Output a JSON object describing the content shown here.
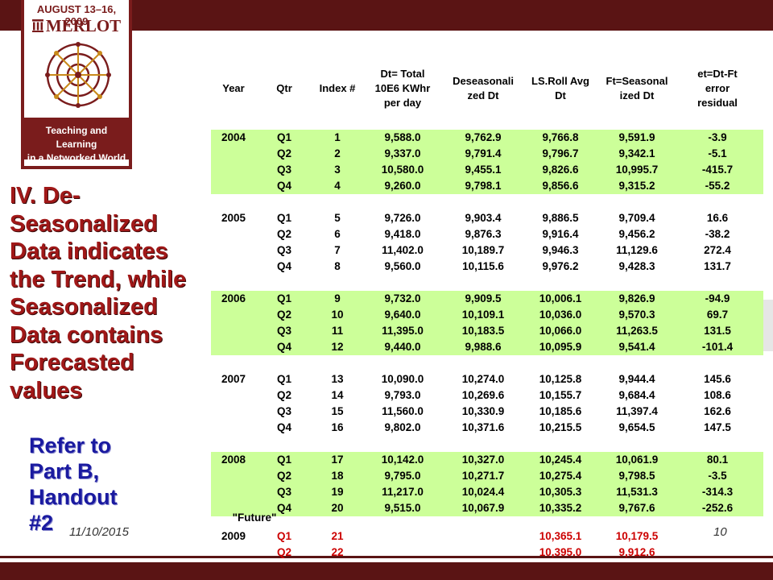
{
  "logo": {
    "dates": "AUGUST 13–16, 2009",
    "name": "MERLOT",
    "tagline_line1": "Teaching and Learning",
    "tagline_line2": "in a Networked World",
    "colors": {
      "brand": "#7a1c1c"
    }
  },
  "slide": {
    "title_lines": [
      "IV.  De-",
      "Seasonalized",
      "Data indicates",
      "the Trend, while",
      "Seasonalized",
      "Data  contains",
      "Forecasted",
      "values"
    ],
    "refer_lines": [
      "Refer to",
      "Part B,",
      "Handout",
      "#2"
    ],
    "footer_date": "11/10/2015",
    "page_number": "10"
  },
  "table": {
    "headers": {
      "year": "Year",
      "qtr": "Qtr",
      "index": "Index #",
      "dt": [
        "Dt= Total",
        "10E6 KWhr",
        "per day"
      ],
      "deseasonalized": [
        "Deseasonali",
        "zed Dt"
      ],
      "ls_roll": [
        "LS.Roll Avg",
        "Dt"
      ],
      "ft": [
        "Ft=Seasonal",
        "ized Dt"
      ],
      "et": [
        "et=Dt-Ft",
        "error",
        "residual"
      ]
    },
    "groups": [
      {
        "year": "2004",
        "highlight": true,
        "rows": [
          {
            "qtr": "Q1",
            "index": "1",
            "dt": "9,588.0",
            "des": "9,762.9",
            "ls": "9,766.8",
            "ft": "9,591.9",
            "et": "-3.9"
          },
          {
            "qtr": "Q2",
            "index": "2",
            "dt": "9,337.0",
            "des": "9,791.4",
            "ls": "9,796.7",
            "ft": "9,342.1",
            "et": "-5.1"
          },
          {
            "qtr": "Q3",
            "index": "3",
            "dt": "10,580.0",
            "des": "9,455.1",
            "ls": "9,826.6",
            "ft": "10,995.7",
            "et": "-415.7"
          },
          {
            "qtr": "Q4",
            "index": "4",
            "dt": "9,260.0",
            "des": "9,798.1",
            "ls": "9,856.6",
            "ft": "9,315.2",
            "et": "-55.2"
          }
        ]
      },
      {
        "year": "2005",
        "highlight": false,
        "rows": [
          {
            "qtr": "Q1",
            "index": "5",
            "dt": "9,726.0",
            "des": "9,903.4",
            "ls": "9,886.5",
            "ft": "9,709.4",
            "et": "16.6"
          },
          {
            "qtr": "Q2",
            "index": "6",
            "dt": "9,418.0",
            "des": "9,876.3",
            "ls": "9,916.4",
            "ft": "9,456.2",
            "et": "-38.2"
          },
          {
            "qtr": "Q3",
            "index": "7",
            "dt": "11,402.0",
            "des": "10,189.7",
            "ls": "9,946.3",
            "ft": "11,129.6",
            "et": "272.4"
          },
          {
            "qtr": "Q4",
            "index": "8",
            "dt": "9,560.0",
            "des": "10,115.6",
            "ls": "9,976.2",
            "ft": "9,428.3",
            "et": "131.7"
          }
        ]
      },
      {
        "year": "2006",
        "highlight": true,
        "rows": [
          {
            "qtr": "Q1",
            "index": "9",
            "dt": "9,732.0",
            "des": "9,909.5",
            "ls": "10,006.1",
            "ft": "9,826.9",
            "et": "-94.9"
          },
          {
            "qtr": "Q2",
            "index": "10",
            "dt": "9,640.0",
            "des": "10,109.1",
            "ls": "10,036.0",
            "ft": "9,570.3",
            "et": "69.7"
          },
          {
            "qtr": "Q3",
            "index": "11",
            "dt": "11,395.0",
            "des": "10,183.5",
            "ls": "10,066.0",
            "ft": "11,263.5",
            "et": "131.5"
          },
          {
            "qtr": "Q4",
            "index": "12",
            "dt": "9,440.0",
            "des": "9,988.6",
            "ls": "10,095.9",
            "ft": "9,541.4",
            "et": "-101.4"
          }
        ]
      },
      {
        "year": "2007",
        "highlight": false,
        "rows": [
          {
            "qtr": "Q1",
            "index": "13",
            "dt": "10,090.0",
            "des": "10,274.0",
            "ls": "10,125.8",
            "ft": "9,944.4",
            "et": "145.6"
          },
          {
            "qtr": "Q2",
            "index": "14",
            "dt": "9,793.0",
            "des": "10,269.6",
            "ls": "10,155.7",
            "ft": "9,684.4",
            "et": "108.6"
          },
          {
            "qtr": "Q3",
            "index": "15",
            "dt": "11,560.0",
            "des": "10,330.9",
            "ls": "10,185.6",
            "ft": "11,397.4",
            "et": "162.6"
          },
          {
            "qtr": "Q4",
            "index": "16",
            "dt": "9,802.0",
            "des": "10,371.6",
            "ls": "10,215.5",
            "ft": "9,654.5",
            "et": "147.5"
          }
        ]
      },
      {
        "year": "2008",
        "highlight": true,
        "rows": [
          {
            "qtr": "Q1",
            "index": "17",
            "dt": "10,142.0",
            "des": "10,327.0",
            "ls": "10,245.4",
            "ft": "10,061.9",
            "et": "80.1"
          },
          {
            "qtr": "Q2",
            "index": "18",
            "dt": "9,795.0",
            "des": "10,271.7",
            "ls": "10,275.4",
            "ft": "9,798.5",
            "et": "-3.5"
          },
          {
            "qtr": "Q3",
            "index": "19",
            "dt": "11,217.0",
            "des": "10,024.4",
            "ls": "10,305.3",
            "ft": "11,531.3",
            "et": "-314.3"
          },
          {
            "qtr": "Q4",
            "index": "20",
            "dt": "9,515.0",
            "des": "10,067.9",
            "ls": "10,335.2",
            "ft": "9,767.6",
            "et": "-252.6"
          }
        ]
      }
    ],
    "future": {
      "label": "\"Future\"",
      "year": "2009",
      "rows": [
        {
          "qtr": "Q1",
          "index": "21",
          "ls": "10,365.1",
          "ft": "10,179.5"
        },
        {
          "qtr": "Q2",
          "index": "22",
          "ls": "10,395.0",
          "ft": "9,912.6"
        }
      ]
    },
    "colors": {
      "highlight": "#ccff99",
      "future_text": "#cc0000"
    }
  }
}
